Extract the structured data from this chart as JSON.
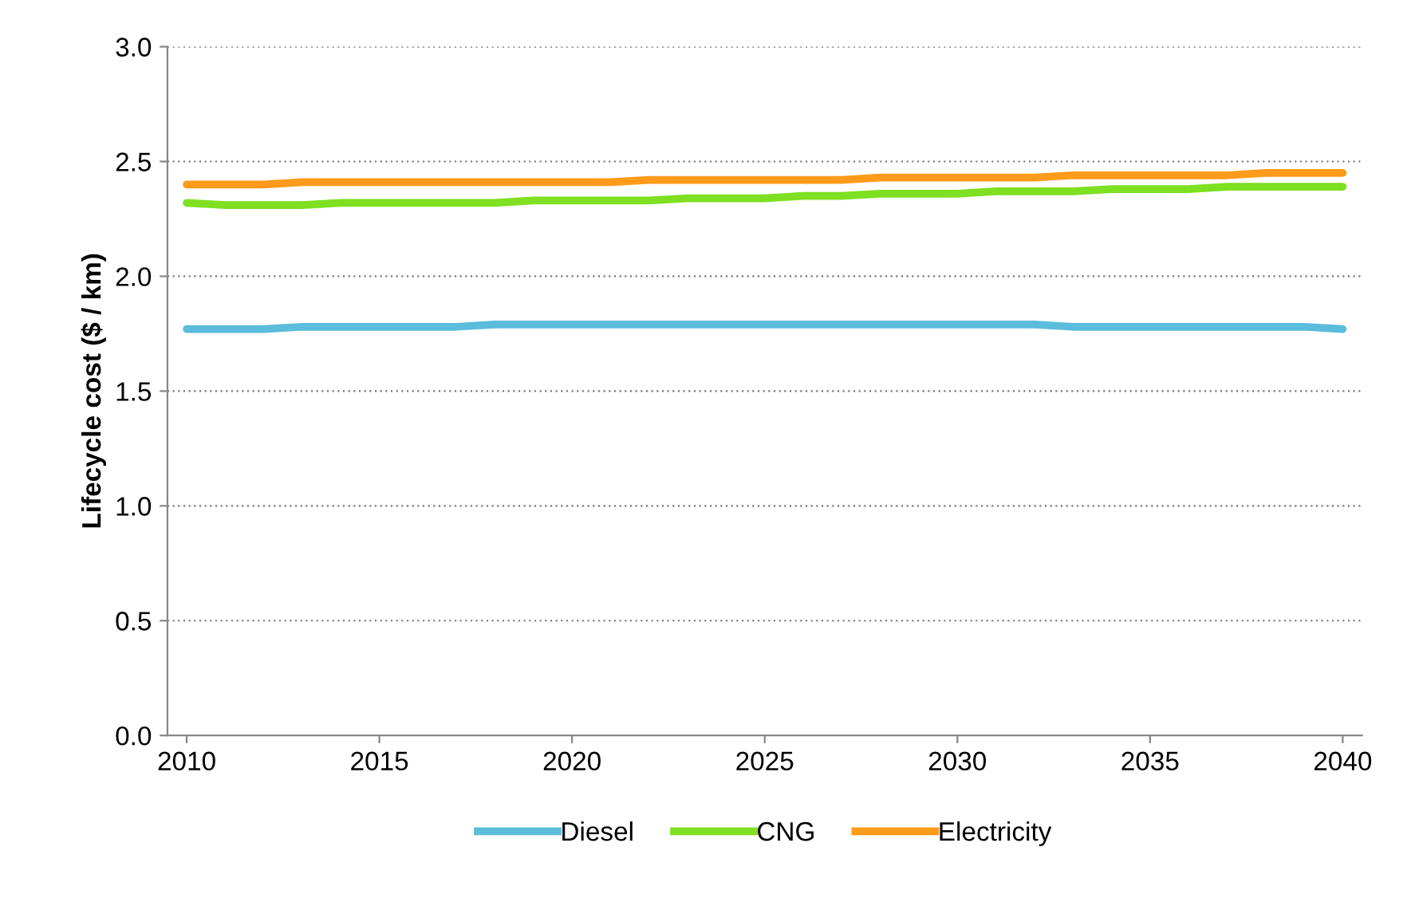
{
  "chart_data": {
    "type": "line",
    "ylabel": "Lifecycle cost ($ / km)",
    "x": [
      2010,
      2011,
      2012,
      2013,
      2014,
      2015,
      2016,
      2017,
      2018,
      2019,
      2020,
      2021,
      2022,
      2023,
      2024,
      2025,
      2026,
      2027,
      2028,
      2029,
      2030,
      2031,
      2032,
      2033,
      2034,
      2035,
      2036,
      2037,
      2038,
      2039,
      2040
    ],
    "series": [
      {
        "name": "Diesel",
        "color": "#5bbcdc",
        "values": [
          1.77,
          1.77,
          1.77,
          1.78,
          1.78,
          1.78,
          1.78,
          1.78,
          1.79,
          1.79,
          1.79,
          1.79,
          1.79,
          1.79,
          1.79,
          1.79,
          1.79,
          1.79,
          1.79,
          1.79,
          1.79,
          1.79,
          1.79,
          1.78,
          1.78,
          1.78,
          1.78,
          1.78,
          1.78,
          1.78,
          1.77
        ]
      },
      {
        "name": "CNG",
        "color": "#7ee021",
        "values": [
          2.32,
          2.31,
          2.31,
          2.31,
          2.32,
          2.32,
          2.32,
          2.32,
          2.32,
          2.33,
          2.33,
          2.33,
          2.33,
          2.34,
          2.34,
          2.34,
          2.35,
          2.35,
          2.36,
          2.36,
          2.36,
          2.37,
          2.37,
          2.37,
          2.38,
          2.38,
          2.38,
          2.39,
          2.39,
          2.39,
          2.39
        ]
      },
      {
        "name": "Electricity",
        "color": "#ff9a1a",
        "values": [
          2.4,
          2.4,
          2.4,
          2.41,
          2.41,
          2.41,
          2.41,
          2.41,
          2.41,
          2.41,
          2.41,
          2.41,
          2.42,
          2.42,
          2.42,
          2.42,
          2.42,
          2.42,
          2.43,
          2.43,
          2.43,
          2.43,
          2.43,
          2.44,
          2.44,
          2.44,
          2.44,
          2.44,
          2.45,
          2.45,
          2.45
        ]
      }
    ],
    "xlim": [
      2009.5,
      2040.5
    ],
    "xticks": [
      2010,
      2015,
      2020,
      2025,
      2030,
      2035,
      2040
    ],
    "ylim": [
      0,
      3.0
    ],
    "yticks": [
      {
        "value": 0,
        "label": "0.0"
      },
      {
        "value": 0.5,
        "label": "0.5"
      },
      {
        "value": 1.0,
        "label": "1.0"
      },
      {
        "value": 1.5,
        "label": "1.5"
      },
      {
        "value": 2.0,
        "label": "2.0"
      },
      {
        "value": 2.5,
        "label": "2.5"
      },
      {
        "value": 3.0,
        "label": "3.0"
      }
    ],
    "grid": "y",
    "legend": "bottom",
    "marker": "none",
    "line_style": "solid"
  }
}
